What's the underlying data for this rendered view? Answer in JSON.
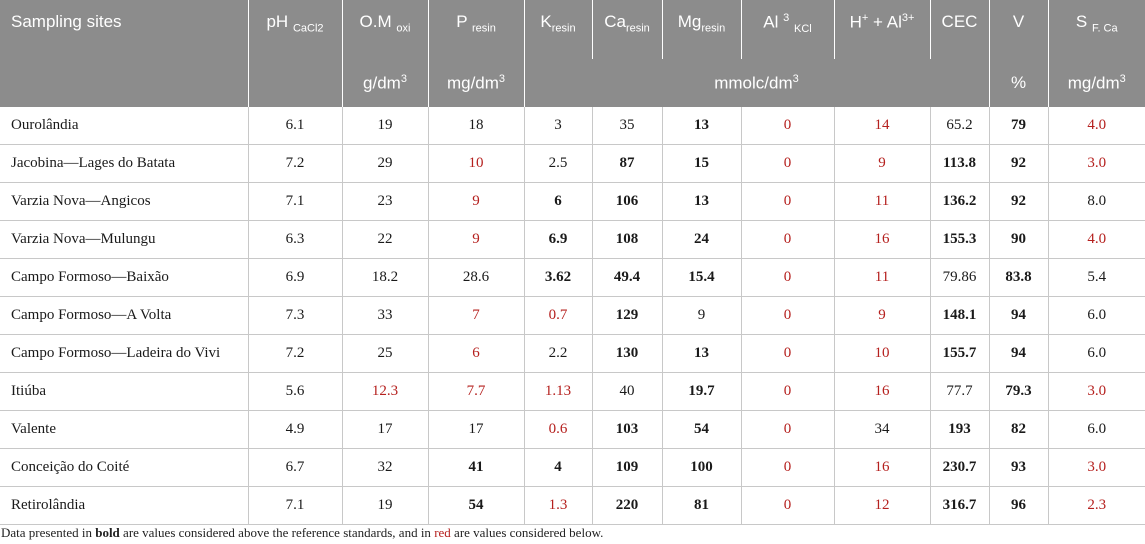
{
  "headers": {
    "site": "Sampling sites",
    "ph": {
      "main": "pH",
      "sub": "CaCl2"
    },
    "om": {
      "main": "O.M",
      "sub": "oxi"
    },
    "p": {
      "main": "P",
      "sub": "resin"
    },
    "k": {
      "main": "K",
      "sub": "resin"
    },
    "ca": {
      "main": "Ca",
      "sub": "resin"
    },
    "mg": {
      "main": "Mg",
      "sub": "resin"
    },
    "al": {
      "main": "Al",
      "sup": "3",
      "sub": "KCl"
    },
    "hal": {
      "pre": "H",
      "sup1": "+",
      "mid": " + Al",
      "sup2": "3+"
    },
    "cec": "CEC",
    "v": "V",
    "s": {
      "main": "S",
      "sub": "F. Ca"
    }
  },
  "units": {
    "om": {
      "base": "g/dm",
      "exp": "3"
    },
    "p": {
      "base": "mg/dm",
      "exp": "3"
    },
    "mmolc": {
      "base": "mmolc/dm",
      "exp": "3"
    },
    "v": "%",
    "s": {
      "base": "mg/dm",
      "exp": "3"
    }
  },
  "rows": [
    {
      "site": "Ourolândia",
      "cells": [
        {
          "v": "6.1",
          "s": ""
        },
        {
          "v": "19",
          "s": ""
        },
        {
          "v": "18",
          "s": ""
        },
        {
          "v": "3",
          "s": ""
        },
        {
          "v": "35",
          "s": ""
        },
        {
          "v": "13",
          "s": "b"
        },
        {
          "v": "0",
          "s": "r"
        },
        {
          "v": "14",
          "s": "r"
        },
        {
          "v": "65.2",
          "s": ""
        },
        {
          "v": "79",
          "s": "b"
        },
        {
          "v": "4.0",
          "s": "r"
        }
      ]
    },
    {
      "site": "Jacobina—Lages do Batata",
      "cells": [
        {
          "v": "7.2",
          "s": ""
        },
        {
          "v": "29",
          "s": ""
        },
        {
          "v": "10",
          "s": "r"
        },
        {
          "v": "2.5",
          "s": ""
        },
        {
          "v": "87",
          "s": "b"
        },
        {
          "v": "15",
          "s": "b"
        },
        {
          "v": "0",
          "s": "r"
        },
        {
          "v": "9",
          "s": "r"
        },
        {
          "v": "113.8",
          "s": "b"
        },
        {
          "v": "92",
          "s": "b"
        },
        {
          "v": "3.0",
          "s": "r"
        }
      ]
    },
    {
      "site": "Varzia Nova—Angicos",
      "cells": [
        {
          "v": "7.1",
          "s": ""
        },
        {
          "v": "23",
          "s": ""
        },
        {
          "v": "9",
          "s": "r"
        },
        {
          "v": "6",
          "s": "b"
        },
        {
          "v": "106",
          "s": "b"
        },
        {
          "v": "13",
          "s": "b"
        },
        {
          "v": "0",
          "s": "r"
        },
        {
          "v": "11",
          "s": "r"
        },
        {
          "v": "136.2",
          "s": "b"
        },
        {
          "v": "92",
          "s": "b"
        },
        {
          "v": "8.0",
          "s": ""
        }
      ]
    },
    {
      "site": "Varzia Nova—Mulungu",
      "cells": [
        {
          "v": "6.3",
          "s": ""
        },
        {
          "v": "22",
          "s": ""
        },
        {
          "v": "9",
          "s": "r"
        },
        {
          "v": "6.9",
          "s": "b"
        },
        {
          "v": "108",
          "s": "b"
        },
        {
          "v": "24",
          "s": "b"
        },
        {
          "v": "0",
          "s": "r"
        },
        {
          "v": "16",
          "s": "r"
        },
        {
          "v": "155.3",
          "s": "b"
        },
        {
          "v": "90",
          "s": "b"
        },
        {
          "v": "4.0",
          "s": "r"
        }
      ]
    },
    {
      "site": "Campo Formoso—Baixão",
      "cells": [
        {
          "v": "6.9",
          "s": ""
        },
        {
          "v": "18.2",
          "s": ""
        },
        {
          "v": "28.6",
          "s": ""
        },
        {
          "v": "3.62",
          "s": "b"
        },
        {
          "v": "49.4",
          "s": "b"
        },
        {
          "v": "15.4",
          "s": "b"
        },
        {
          "v": "0",
          "s": "r"
        },
        {
          "v": "11",
          "s": "r"
        },
        {
          "v": "79.86",
          "s": ""
        },
        {
          "v": "83.8",
          "s": "b"
        },
        {
          "v": "5.4",
          "s": ""
        }
      ]
    },
    {
      "site": "Campo Formoso—A Volta",
      "cells": [
        {
          "v": "7.3",
          "s": ""
        },
        {
          "v": "33",
          "s": ""
        },
        {
          "v": "7",
          "s": "r"
        },
        {
          "v": "0.7",
          "s": "r"
        },
        {
          "v": "129",
          "s": "b"
        },
        {
          "v": "9",
          "s": ""
        },
        {
          "v": "0",
          "s": "r"
        },
        {
          "v": "9",
          "s": "r"
        },
        {
          "v": "148.1",
          "s": "b"
        },
        {
          "v": "94",
          "s": "b"
        },
        {
          "v": "6.0",
          "s": ""
        }
      ]
    },
    {
      "site": "Campo Formoso—Ladeira do Vivi",
      "cells": [
        {
          "v": "7.2",
          "s": ""
        },
        {
          "v": "25",
          "s": ""
        },
        {
          "v": "6",
          "s": "r"
        },
        {
          "v": "2.2",
          "s": ""
        },
        {
          "v": "130",
          "s": "b"
        },
        {
          "v": "13",
          "s": "b"
        },
        {
          "v": "0",
          "s": "r"
        },
        {
          "v": "10",
          "s": "r"
        },
        {
          "v": "155.7",
          "s": "b"
        },
        {
          "v": "94",
          "s": "b"
        },
        {
          "v": "6.0",
          "s": ""
        }
      ]
    },
    {
      "site": "Itiúba",
      "cells": [
        {
          "v": "5.6",
          "s": ""
        },
        {
          "v": "12.3",
          "s": "r"
        },
        {
          "v": "7.7",
          "s": "r"
        },
        {
          "v": "1.13",
          "s": "r"
        },
        {
          "v": "40",
          "s": ""
        },
        {
          "v": "19.7",
          "s": "b"
        },
        {
          "v": "0",
          "s": "r"
        },
        {
          "v": "16",
          "s": "r"
        },
        {
          "v": "77.7",
          "s": ""
        },
        {
          "v": "79.3",
          "s": "b"
        },
        {
          "v": "3.0",
          "s": "r"
        }
      ]
    },
    {
      "site": "Valente",
      "cells": [
        {
          "v": "4.9",
          "s": ""
        },
        {
          "v": "17",
          "s": ""
        },
        {
          "v": "17",
          "s": ""
        },
        {
          "v": "0.6",
          "s": "r"
        },
        {
          "v": "103",
          "s": "b"
        },
        {
          "v": "54",
          "s": "b"
        },
        {
          "v": "0",
          "s": "r"
        },
        {
          "v": "34",
          "s": ""
        },
        {
          "v": "193",
          "s": "b"
        },
        {
          "v": "82",
          "s": "b"
        },
        {
          "v": "6.0",
          "s": ""
        }
      ]
    },
    {
      "site": "Conceição do Coité",
      "cells": [
        {
          "v": "6.7",
          "s": ""
        },
        {
          "v": "32",
          "s": ""
        },
        {
          "v": "41",
          "s": "b"
        },
        {
          "v": "4",
          "s": "b"
        },
        {
          "v": "109",
          "s": "b"
        },
        {
          "v": "100",
          "s": "b"
        },
        {
          "v": "0",
          "s": "r"
        },
        {
          "v": "16",
          "s": "r"
        },
        {
          "v": "230.7",
          "s": "b"
        },
        {
          "v": "93",
          "s": "b"
        },
        {
          "v": "3.0",
          "s": "r"
        }
      ]
    },
    {
      "site": "Retirolândia",
      "cells": [
        {
          "v": "7.1",
          "s": ""
        },
        {
          "v": "19",
          "s": ""
        },
        {
          "v": "54",
          "s": "b"
        },
        {
          "v": "1.3",
          "s": "r"
        },
        {
          "v": "220",
          "s": "b"
        },
        {
          "v": "81",
          "s": "b"
        },
        {
          "v": "0",
          "s": "r"
        },
        {
          "v": "12",
          "s": "r"
        },
        {
          "v": "316.7",
          "s": "b"
        },
        {
          "v": "96",
          "s": "b"
        },
        {
          "v": "2.3",
          "s": "r"
        }
      ]
    }
  ],
  "footnote": {
    "t1": "Data presented in ",
    "bold_word": "bold",
    "t2": " are values considered above the reference standards, and in ",
    "red_word": "red",
    "t3": " are values considered below."
  },
  "colors": {
    "header_bg": "#8c8c8c",
    "below": "#b5201e",
    "grid": "#c8c8c8"
  }
}
